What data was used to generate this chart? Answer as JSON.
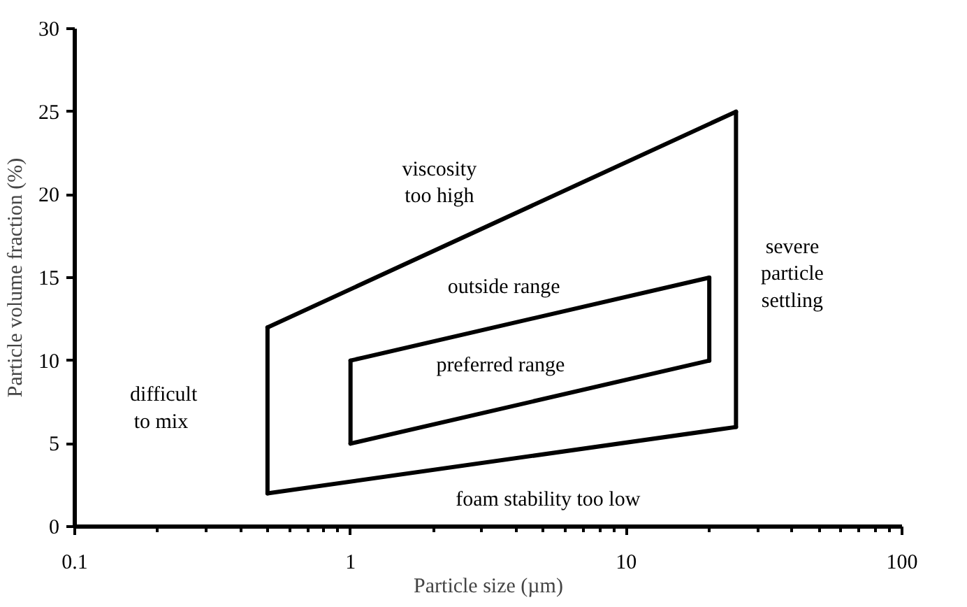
{
  "chart_data": {
    "type": "line",
    "xlabel": "Particle size (µm)",
    "ylabel": "Particle volume fraction (%)",
    "log": "x",
    "xlim": [
      0.1,
      100
    ],
    "xticks": [
      0.1,
      1,
      10,
      100
    ],
    "ylim": [
      0,
      30
    ],
    "yticks": [
      0,
      5,
      10,
      15,
      20,
      25,
      30
    ],
    "grid": false,
    "marker": "none",
    "line_style": "solid",
    "series": [
      {
        "color": "#000000",
        "x": [
          0.5,
          25
        ],
        "values": [
          12,
          25
        ]
      },
      {
        "color": "#000000",
        "x": [
          0.5,
          25
        ],
        "values": [
          2,
          6
        ]
      },
      {
        "color": "#000000",
        "x": [
          0.5,
          0.5
        ],
        "values": [
          2,
          12
        ]
      },
      {
        "color": "#000000",
        "x": [
          25,
          25
        ],
        "values": [
          6,
          25
        ]
      },
      {
        "color": "#000000",
        "x": [
          1,
          20
        ],
        "values": [
          10,
          15
        ]
      },
      {
        "color": "#000000",
        "x": [
          1,
          20
        ],
        "values": [
          5,
          10
        ]
      },
      {
        "color": "#000000",
        "x": [
          1,
          1
        ],
        "values": [
          5,
          10
        ]
      },
      {
        "color": "#000000",
        "x": [
          20,
          20
        ],
        "values": [
          10,
          15
        ]
      }
    ],
    "annotations": [
      "viscosity\ntoo high",
      "outside range",
      "preferred range",
      "difficult\nto  mix",
      "severe\nparticle\nsettling",
      "foam stability too low"
    ]
  }
}
